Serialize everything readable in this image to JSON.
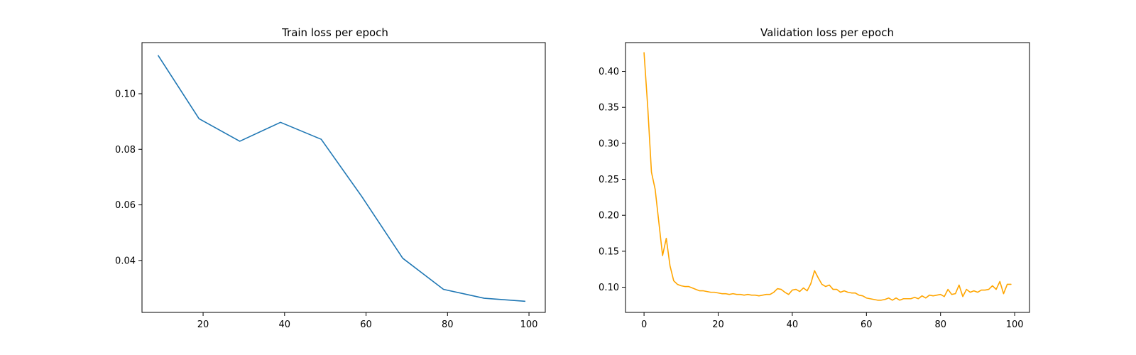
{
  "chart_data": [
    {
      "type": "line",
      "title": "Train loss per epoch",
      "xlabel": "",
      "ylabel": "",
      "xlim": [
        5,
        104
      ],
      "ylim": [
        0.0213,
        0.1184
      ],
      "xticks": [
        20,
        40,
        60,
        80,
        100
      ],
      "yticks": [
        0.04,
        0.06,
        0.08,
        0.1
      ],
      "xtick_labels": [
        "20",
        "40",
        "60",
        "80",
        "100"
      ],
      "ytick_labels": [
        "0.04",
        "0.06",
        "0.08",
        "0.10"
      ],
      "grid": false,
      "color": "#1f77b4",
      "series": [
        {
          "x": [
            9,
            19,
            29,
            39,
            49,
            59,
            69,
            79,
            89,
            99
          ],
          "y": [
            0.1137,
            0.091,
            0.0829,
            0.0897,
            0.0836,
            0.0629,
            0.0408,
            0.0296,
            0.0264,
            0.0253
          ]
        }
      ]
    },
    {
      "type": "line",
      "title": "Validation loss per epoch",
      "xlabel": "",
      "ylabel": "",
      "xlim": [
        -5,
        104
      ],
      "ylim": [
        0.065,
        0.44
      ],
      "xticks": [
        0,
        20,
        40,
        60,
        80,
        100
      ],
      "yticks": [
        0.1,
        0.15,
        0.2,
        0.25,
        0.3,
        0.35,
        0.4
      ],
      "xtick_labels": [
        "0",
        "20",
        "40",
        "60",
        "80",
        "100"
      ],
      "ytick_labels": [
        "0.10",
        "0.15",
        "0.20",
        "0.25",
        "0.30",
        "0.35",
        "0.40"
      ],
      "grid": false,
      "color": "#ffa500",
      "series": [
        {
          "x": [
            0,
            1,
            2,
            3,
            4,
            5,
            6,
            7,
            8,
            9,
            10,
            11,
            12,
            13,
            14,
            15,
            16,
            17,
            18,
            19,
            20,
            21,
            22,
            23,
            24,
            25,
            26,
            27,
            28,
            29,
            30,
            31,
            32,
            33,
            34,
            35,
            36,
            37,
            38,
            39,
            40,
            41,
            42,
            43,
            44,
            45,
            46,
            47,
            48,
            49,
            50,
            51,
            52,
            53,
            54,
            55,
            56,
            57,
            58,
            59,
            60,
            61,
            62,
            63,
            64,
            65,
            66,
            67,
            68,
            69,
            70,
            71,
            72,
            73,
            74,
            75,
            76,
            77,
            78,
            79,
            80,
            81,
            82,
            83,
            84,
            85,
            86,
            87,
            88,
            89,
            90,
            91,
            92,
            93,
            94,
            95,
            96,
            97,
            98,
            99
          ],
          "y": [
            0.426,
            0.35,
            0.26,
            0.236,
            0.19,
            0.144,
            0.168,
            0.13,
            0.109,
            0.104,
            0.102,
            0.101,
            0.101,
            0.099,
            0.097,
            0.095,
            0.095,
            0.094,
            0.093,
            0.093,
            0.092,
            0.091,
            0.091,
            0.09,
            0.091,
            0.09,
            0.09,
            0.089,
            0.09,
            0.089,
            0.089,
            0.088,
            0.089,
            0.09,
            0.09,
            0.093,
            0.098,
            0.097,
            0.093,
            0.09,
            0.096,
            0.097,
            0.094,
            0.099,
            0.095,
            0.105,
            0.123,
            0.113,
            0.104,
            0.101,
            0.103,
            0.097,
            0.097,
            0.093,
            0.095,
            0.093,
            0.092,
            0.092,
            0.089,
            0.088,
            0.085,
            0.084,
            0.083,
            0.082,
            0.082,
            0.083,
            0.085,
            0.082,
            0.085,
            0.082,
            0.084,
            0.084,
            0.084,
            0.086,
            0.084,
            0.088,
            0.085,
            0.089,
            0.088,
            0.089,
            0.09,
            0.087,
            0.097,
            0.09,
            0.091,
            0.103,
            0.087,
            0.097,
            0.093,
            0.095,
            0.093,
            0.096,
            0.096,
            0.097,
            0.102,
            0.097,
            0.108,
            0.091,
            0.104,
            0.104
          ]
        }
      ]
    }
  ]
}
